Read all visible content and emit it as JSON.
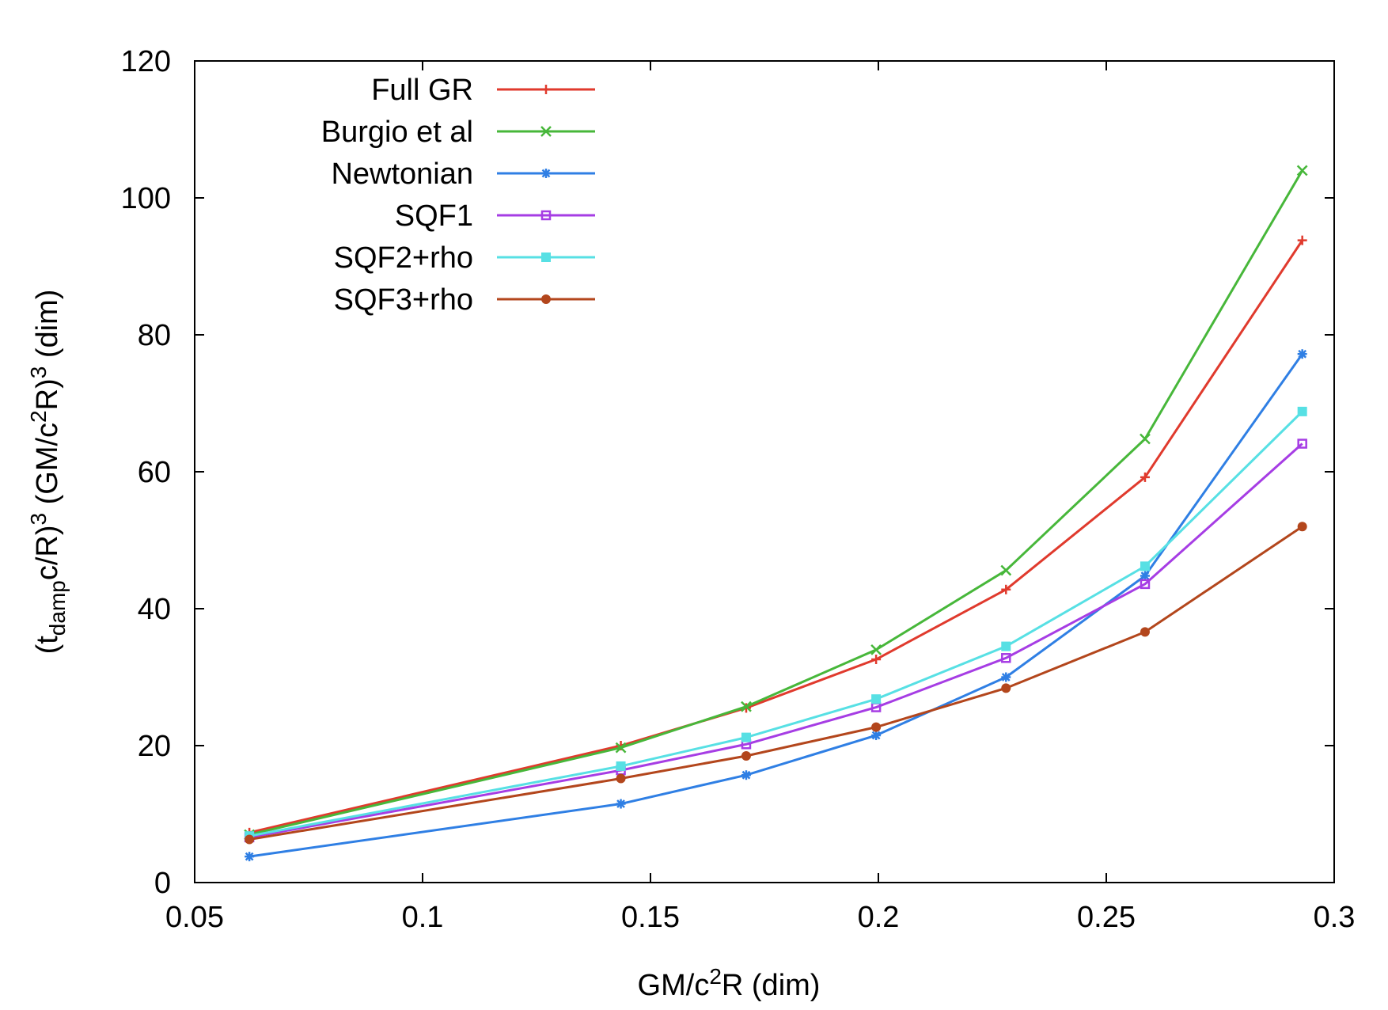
{
  "chart_data": {
    "type": "line",
    "title": "",
    "xlabel": {
      "prefix": "GM/c",
      "sup": "2",
      "suffix": "R (dim)"
    },
    "ylabel": {
      "open": "(t",
      "sub": "damp",
      "mid": "c/R)",
      "sup1": "3",
      "mid2": " (GM/c",
      "sup2": "2",
      "mid3": "R)",
      "sup3": "3",
      "suffix": " (dim)"
    },
    "xlim": [
      0.05,
      0.3
    ],
    "ylim": [
      0,
      120
    ],
    "xticks": [
      0.05,
      0.1,
      0.15,
      0.2,
      0.25,
      0.3
    ],
    "xtick_labels": [
      "0.05",
      "0.1",
      "0.15",
      "0.2",
      "0.25",
      "0.3"
    ],
    "yticks": [
      0,
      20,
      40,
      60,
      80,
      100,
      120
    ],
    "ytick_labels": [
      "0",
      "20",
      "40",
      "60",
      "80",
      "100",
      "120"
    ],
    "grid": false,
    "legend_position": "top-left",
    "x": [
      0.062,
      0.1435,
      0.171,
      0.1995,
      0.228,
      0.2585,
      0.293
    ],
    "series": [
      {
        "name": "Full GR",
        "color": "#e03a2d",
        "marker": "plus",
        "values": [
          7.3,
          20.0,
          25.5,
          32.6,
          42.8,
          59.2,
          93.8
        ]
      },
      {
        "name": "Burgio et al",
        "color": "#47b73a",
        "marker": "cross",
        "values": [
          7.0,
          19.7,
          25.7,
          34.0,
          45.6,
          64.8,
          104.0
        ]
      },
      {
        "name": "Newtonian",
        "color": "#2f7fe4",
        "marker": "star",
        "values": [
          3.8,
          11.5,
          15.7,
          21.5,
          30.0,
          44.8,
          77.2
        ]
      },
      {
        "name": "SQF1",
        "color": "#a63de4",
        "marker": "open-square",
        "values": [
          6.6,
          16.4,
          20.2,
          25.6,
          32.8,
          43.6,
          64.1
        ]
      },
      {
        "name": "SQF2+rho",
        "color": "#57e0e4",
        "marker": "filled-square",
        "values": [
          6.8,
          17.0,
          21.2,
          26.8,
          34.5,
          46.2,
          68.8
        ]
      },
      {
        "name": "SQF3+rho",
        "color": "#b3461c",
        "marker": "filled-circle",
        "values": [
          6.3,
          15.2,
          18.5,
          22.7,
          28.4,
          36.6,
          52.0
        ]
      }
    ]
  }
}
